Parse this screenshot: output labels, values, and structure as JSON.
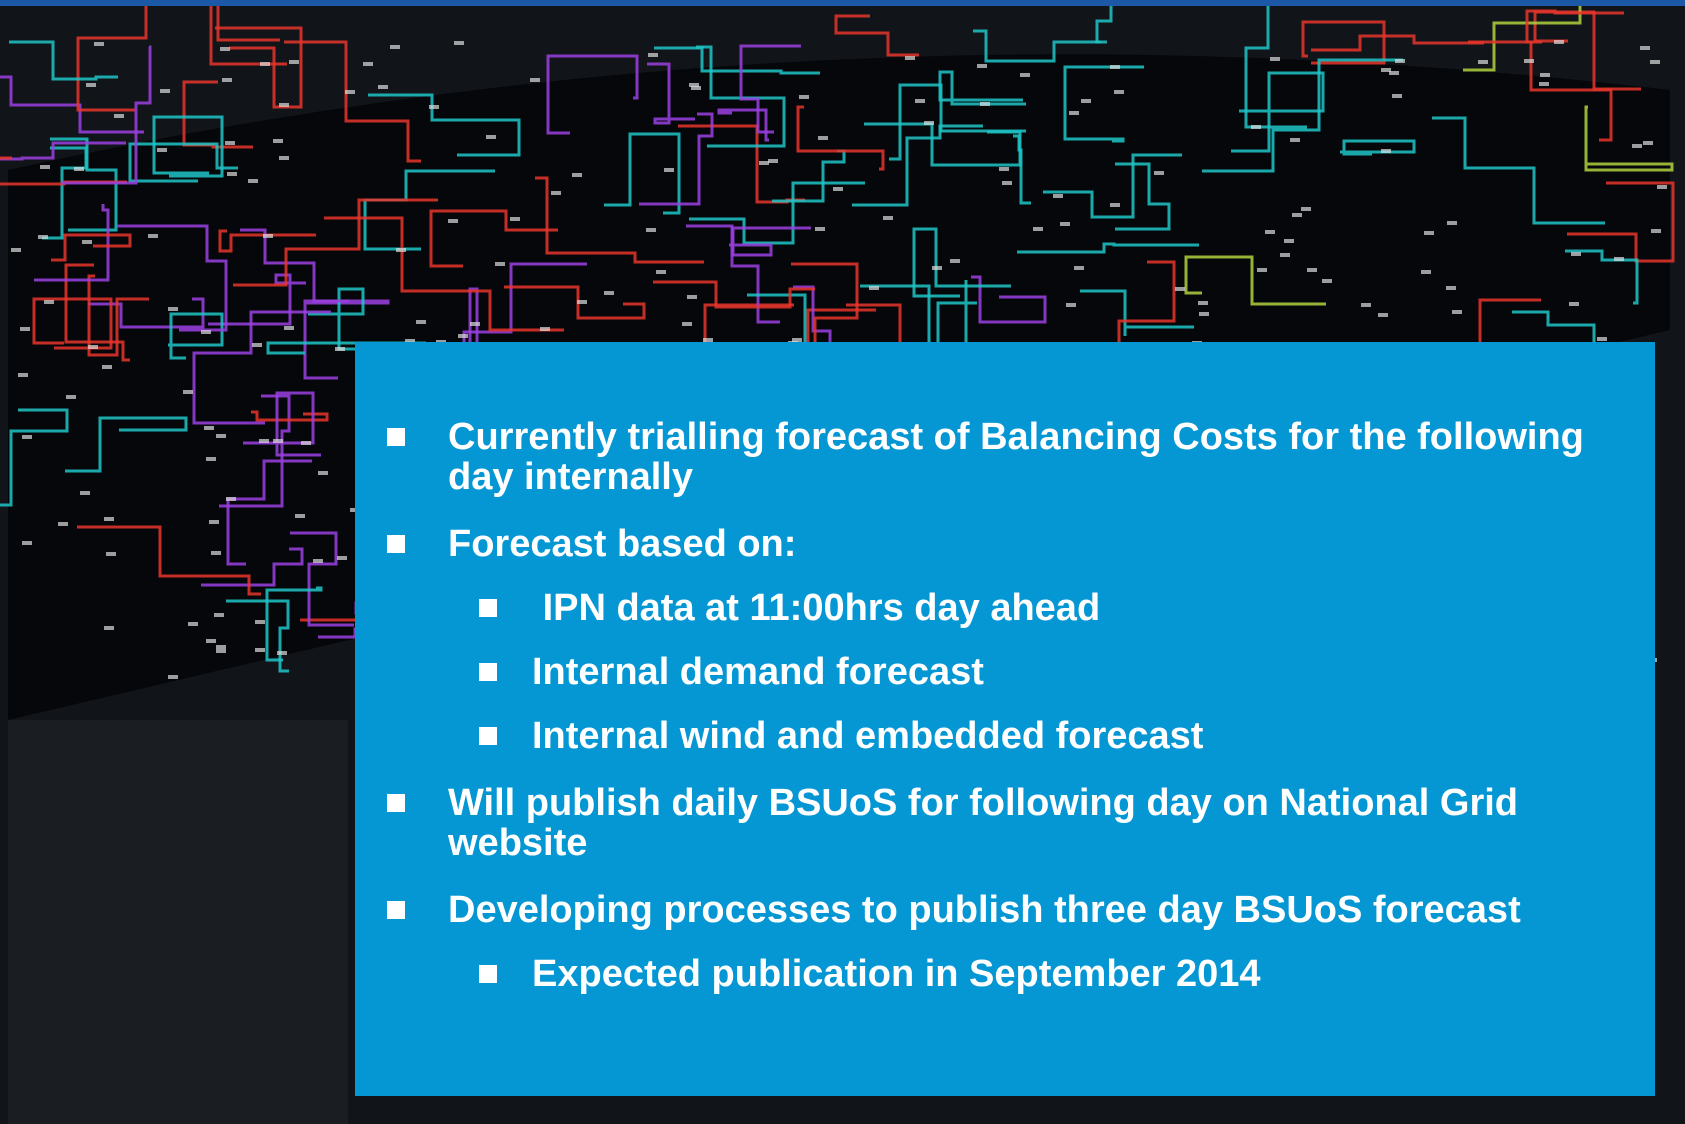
{
  "slide": {
    "bullets": [
      {
        "text": "Currently trialling forecast of Balancing Costs for the following day internally"
      },
      {
        "text": "Forecast based on:",
        "subitems": [
          {
            "text": " IPN data at 11:00hrs day ahead"
          },
          {
            "text": "Internal demand forecast"
          },
          {
            "text": "Internal wind and embedded forecast"
          }
        ]
      },
      {
        "text": "Will publish daily BSUoS for following day on National Grid website"
      },
      {
        "text": "Developing processes to publish three day BSUoS forecast",
        "subitems": [
          {
            "text": "Expected publication in September 2014"
          }
        ]
      }
    ]
  }
}
